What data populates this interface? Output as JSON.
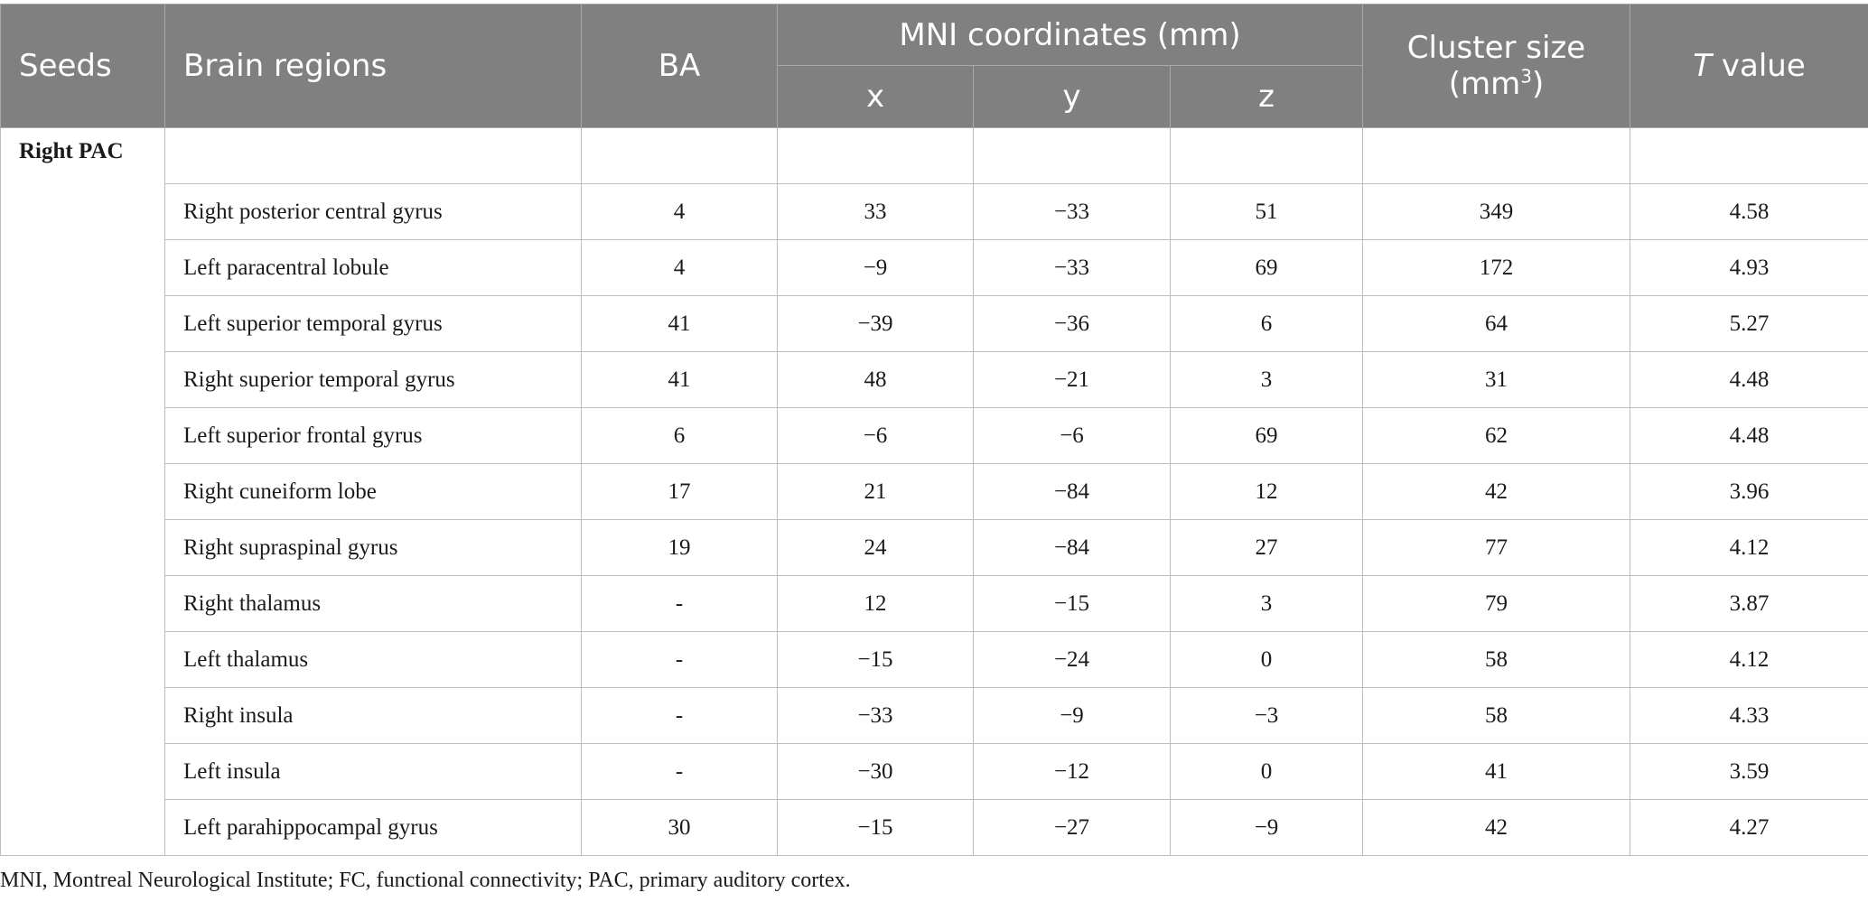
{
  "header": {
    "seeds": "Seeds",
    "brain_regions": "Brain regions",
    "ba": "BA",
    "mni": "MNI coordinates (mm)",
    "x": "x",
    "y": "y",
    "z": "z",
    "cluster_size": "Cluster size",
    "cluster_unit_base": "(mm",
    "cluster_unit_sup": "3",
    "cluster_unit_close": ")",
    "t_letter": "T",
    "t_value": " value"
  },
  "seed_label": "Right PAC",
  "rows": [
    {
      "region": "Right posterior central gyrus",
      "ba": "4",
      "x": "33",
      "y": "−33",
      "z": "51",
      "cluster": "349",
      "t": "4.58"
    },
    {
      "region": "Left paracentral lobule",
      "ba": "4",
      "x": "−9",
      "y": "−33",
      "z": "69",
      "cluster": "172",
      "t": "4.93"
    },
    {
      "region": "Left superior temporal gyrus",
      "ba": "41",
      "x": "−39",
      "y": "−36",
      "z": "6",
      "cluster": "64",
      "t": "5.27"
    },
    {
      "region": "Right superior temporal gyrus",
      "ba": "41",
      "x": "48",
      "y": "−21",
      "z": "3",
      "cluster": "31",
      "t": "4.48"
    },
    {
      "region": "Left superior frontal gyrus",
      "ba": "6",
      "x": "−6",
      "y": "−6",
      "z": "69",
      "cluster": "62",
      "t": "4.48"
    },
    {
      "region": "Right cuneiform lobe",
      "ba": "17",
      "x": "21",
      "y": "−84",
      "z": "12",
      "cluster": "42",
      "t": "3.96"
    },
    {
      "region": "Right supraspinal gyrus",
      "ba": "19",
      "x": "24",
      "y": "−84",
      "z": "27",
      "cluster": "77",
      "t": "4.12"
    },
    {
      "region": "Right thalamus",
      "ba": "-",
      "x": "12",
      "y": "−15",
      "z": "3",
      "cluster": "79",
      "t": "3.87"
    },
    {
      "region": "Left thalamus",
      "ba": "-",
      "x": "−15",
      "y": "−24",
      "z": "0",
      "cluster": "58",
      "t": "4.12"
    },
    {
      "region": "Right insula",
      "ba": "-",
      "x": "−33",
      "y": "−9",
      "z": "−3",
      "cluster": "58",
      "t": "4.33"
    },
    {
      "region": "Left insula",
      "ba": "-",
      "x": "−30",
      "y": "−12",
      "z": "0",
      "cluster": "41",
      "t": "3.59"
    },
    {
      "region": "Left parahippocampal gyrus",
      "ba": "30",
      "x": "−15",
      "y": "−27",
      "z": "−9",
      "cluster": "42",
      "t": "4.27"
    }
  ],
  "footnote": "MNI, Montreal Neurological Institute; FC, functional connectivity; PAC, primary auditory cortex."
}
